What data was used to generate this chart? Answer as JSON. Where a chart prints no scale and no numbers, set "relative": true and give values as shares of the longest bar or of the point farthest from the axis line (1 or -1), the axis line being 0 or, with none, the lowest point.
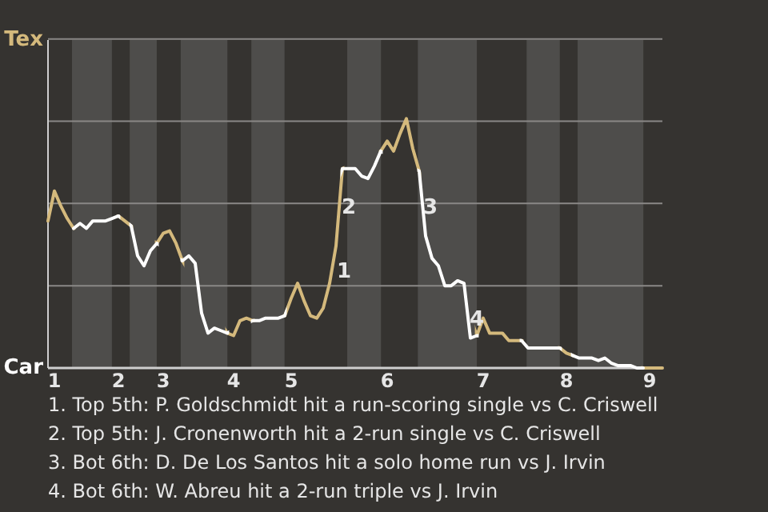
{
  "chart_data": {
    "type": "line",
    "relative": true,
    "categories": [
      null,
      "1",
      null,
      null,
      null,
      null,
      null,
      null,
      null,
      null,
      null,
      "2",
      null,
      null,
      null,
      null,
      null,
      null,
      "3",
      null,
      null,
      null,
      null,
      null,
      null,
      null,
      null,
      null,
      null,
      "4",
      null,
      null,
      null,
      null,
      null,
      null,
      null,
      null,
      "5",
      null,
      null,
      null,
      null,
      null,
      null,
      null,
      null,
      null,
      null,
      null,
      null,
      null,
      null,
      "6",
      null,
      null,
      null,
      null,
      null,
      null,
      null,
      null,
      null,
      null,
      null,
      null,
      null,
      null,
      "7",
      null,
      null,
      null,
      null,
      null,
      null,
      null,
      null,
      null,
      null,
      null,
      null,
      "8",
      null,
      null,
      null,
      null,
      null,
      null,
      null,
      null,
      null,
      null,
      null,
      null,
      "9",
      null,
      null
    ],
    "series": [
      {
        "name": "Tex",
        "color": "#d4b97c",
        "values": [
          0.59,
          0.71,
          0.65,
          0.6,
          0.56,
          null,
          null,
          null,
          null,
          null,
          null,
          0.61,
          0.59,
          0.57,
          null,
          null,
          null,
          0.5,
          0.54,
          0.55,
          0.5,
          0.43,
          null,
          null,
          null,
          null,
          null,
          null,
          0.14,
          0.13,
          0.19,
          0.2,
          0.19,
          null,
          null,
          null,
          null,
          0.21,
          0.28,
          0.34,
          0.27,
          0.21,
          0.2,
          0.24,
          0.34,
          0.49,
          0.8,
          null,
          null,
          null,
          null,
          null,
          0.87,
          0.91,
          0.87,
          0.94,
          1,
          0.88,
          0.79,
          null,
          null,
          null,
          null,
          null,
          null,
          null,
          null,
          0.13,
          0.2,
          0.14,
          0.14,
          0.14,
          0.11,
          0.11,
          0.11,
          null,
          null,
          null,
          null,
          null,
          0.08,
          0.06,
          0.05,
          null,
          null,
          null,
          null,
          null,
          null,
          null,
          null,
          null,
          null,
          0,
          0,
          0,
          0
        ]
      },
      {
        "name": "Car",
        "color": "#ffffff",
        "values": [
          null,
          null,
          null,
          null,
          0.56,
          0.58,
          0.56,
          0.59,
          0.59,
          0.59,
          0.6,
          0.61,
          null,
          0.57,
          0.45,
          0.41,
          0.47,
          0.5,
          null,
          null,
          null,
          0.43,
          0.45,
          0.42,
          0.22,
          0.14,
          0.16,
          0.15,
          0.14,
          null,
          null,
          null,
          0.19,
          0.19,
          0.2,
          0.2,
          0.2,
          0.21,
          null,
          null,
          null,
          null,
          null,
          null,
          null,
          null,
          0.8,
          0.8,
          0.8,
          0.77,
          0.76,
          0.81,
          0.87,
          null,
          null,
          null,
          null,
          null,
          0.79,
          0.53,
          0.44,
          0.41,
          0.33,
          0.33,
          0.35,
          0.34,
          0.12,
          0.13,
          null,
          null,
          null,
          null,
          null,
          null,
          0.11,
          0.08,
          0.08,
          0.08,
          0.08,
          0.08,
          0.08,
          null,
          0.05,
          0.04,
          0.04,
          0.04,
          0.03,
          0.04,
          0.02,
          0.01,
          0.01,
          0.01,
          0,
          0,
          null,
          null,
          null
        ]
      }
    ],
    "ref_lines": [
      {
        "axis": "y",
        "value": 0.33,
        "color": "#8a8886"
      },
      {
        "axis": "y",
        "value": 0.66,
        "color": "#8a8886"
      },
      {
        "axis": "y",
        "value": 0.99,
        "color": "#8a8886"
      },
      {
        "axis": "y",
        "value": 1.32,
        "color": "#8a8886"
      }
    ],
    "legend": false,
    "marker": "none",
    "line_style": "solid",
    "annotations": [
      "1",
      "2",
      "3",
      "4",
      "1. Top 5th: P. Goldschmidt hit a run-scoring single vs C. Criswell",
      "2. Top 5th: J. Cronenworth hit a 2-run single vs C. Criswell",
      "3. Bot 6th: D. De Los Santos hit a solo home run vs J. Irvin",
      "4. Bot 6th: W. Abreu hit a 2-run triple vs J. Irvin"
    ]
  }
}
